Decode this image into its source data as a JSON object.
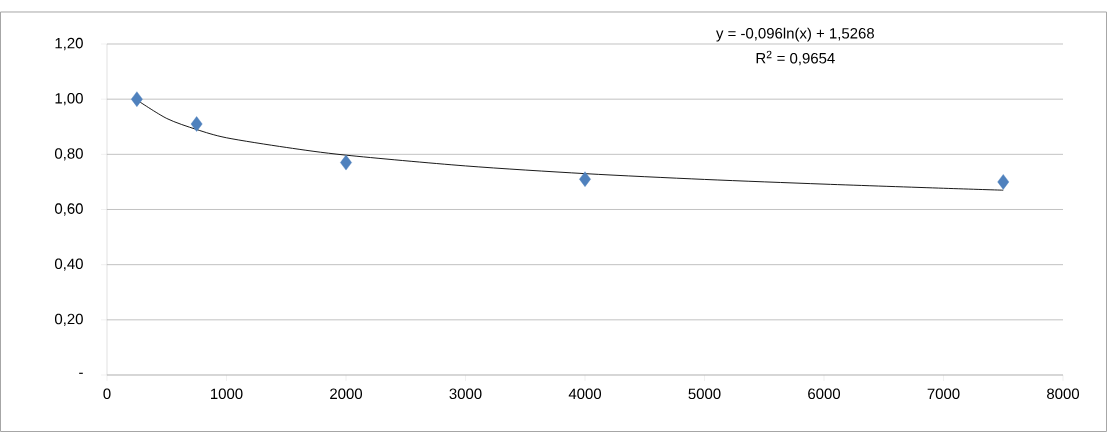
{
  "chart_data": {
    "type": "scatter",
    "series": [
      {
        "color": "#4f81bd",
        "marker": "diamond",
        "x": [
          250,
          750,
          2000,
          4000,
          7500
        ],
        "values": [
          1.0,
          0.91,
          0.77,
          0.71,
          0.7
        ]
      },
      {
        "type": "line",
        "color": "#000000",
        "marker": "none",
        "x": [
          250,
          500,
          750,
          1000,
          1500,
          2000,
          3000,
          4000,
          5000,
          6000,
          7000,
          7500
        ],
        "values": [
          0.997,
          0.93,
          0.89,
          0.86,
          0.825,
          0.797,
          0.758,
          0.73,
          0.709,
          0.692,
          0.677,
          0.67
        ]
      }
    ],
    "xlim": [
      0,
      8000
    ],
    "xticks": [
      0,
      1000,
      2000,
      3000,
      4000,
      5000,
      6000,
      7000,
      8000
    ],
    "ylim": [
      0,
      1.2
    ],
    "yticks": [
      {
        "value": 0,
        "label": "-"
      },
      {
        "value": 0.2,
        "label": "0,20"
      },
      {
        "value": 0.4,
        "label": "0,40"
      },
      {
        "value": 0.6,
        "label": "0,60"
      },
      {
        "value": 0.8,
        "label": "0,80"
      },
      {
        "value": 1.0,
        "label": "1,00"
      },
      {
        "value": 1.2,
        "label": "1,20"
      }
    ],
    "grid": "y",
    "annotations": [
      "y = -0,096ln(x) + 1,5268",
      "R$^{2}$ = 0,9654"
    ]
  }
}
